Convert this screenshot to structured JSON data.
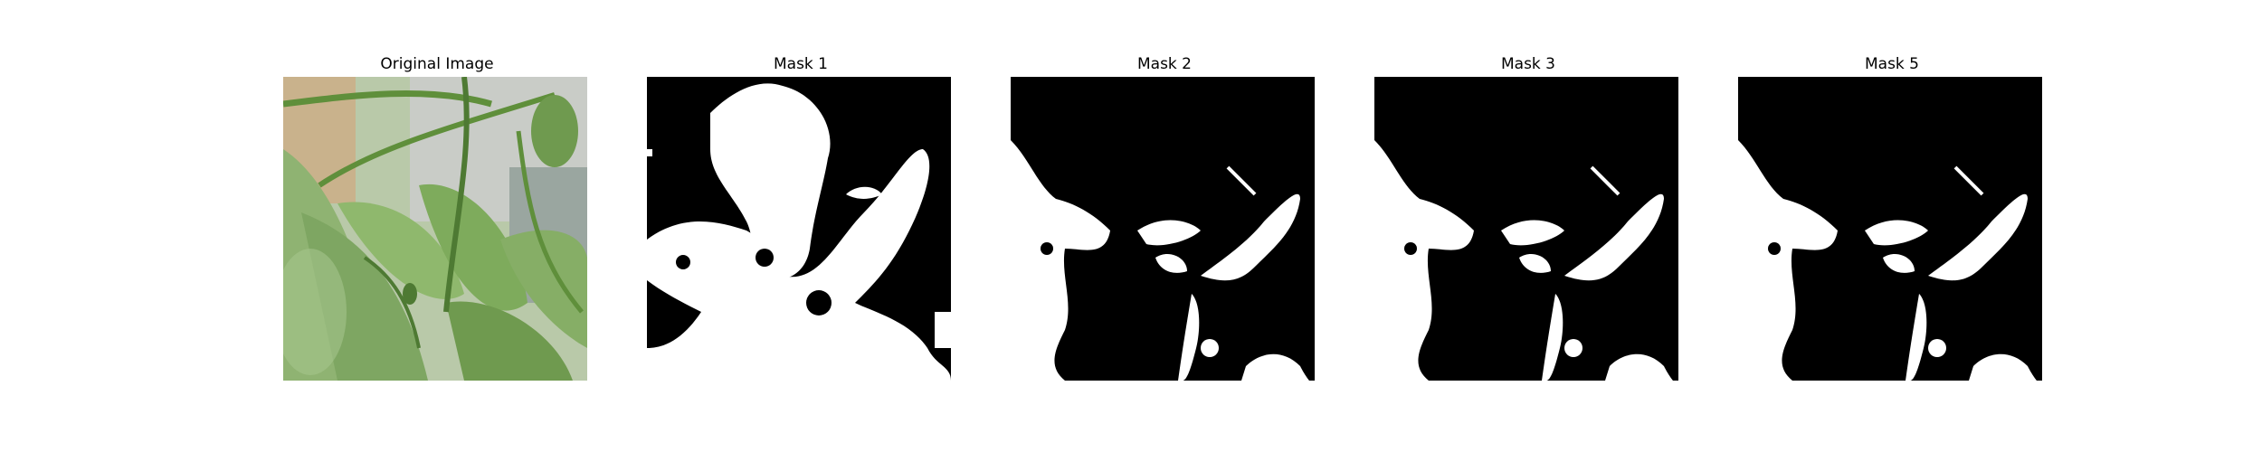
{
  "figure": {
    "panels": [
      {
        "title": "Original Image"
      },
      {
        "title": "Mask 1"
      },
      {
        "title": "Mask 2"
      },
      {
        "title": "Mask 3"
      },
      {
        "title": "Mask 5"
      }
    ]
  },
  "colors": {
    "background": "#ffffff",
    "mask_background": "#000000",
    "mask_foreground": "#ffffff",
    "leaf_light": "#8fb372",
    "leaf_dark": "#4e7a33",
    "stem": "#5f8f3b",
    "wall": "#c9ccc7",
    "sand": "#c9b28c"
  },
  "icons": {
    "original_image": "pepper-plant-photo",
    "mask_images": "binary-segmentation-mask"
  }
}
